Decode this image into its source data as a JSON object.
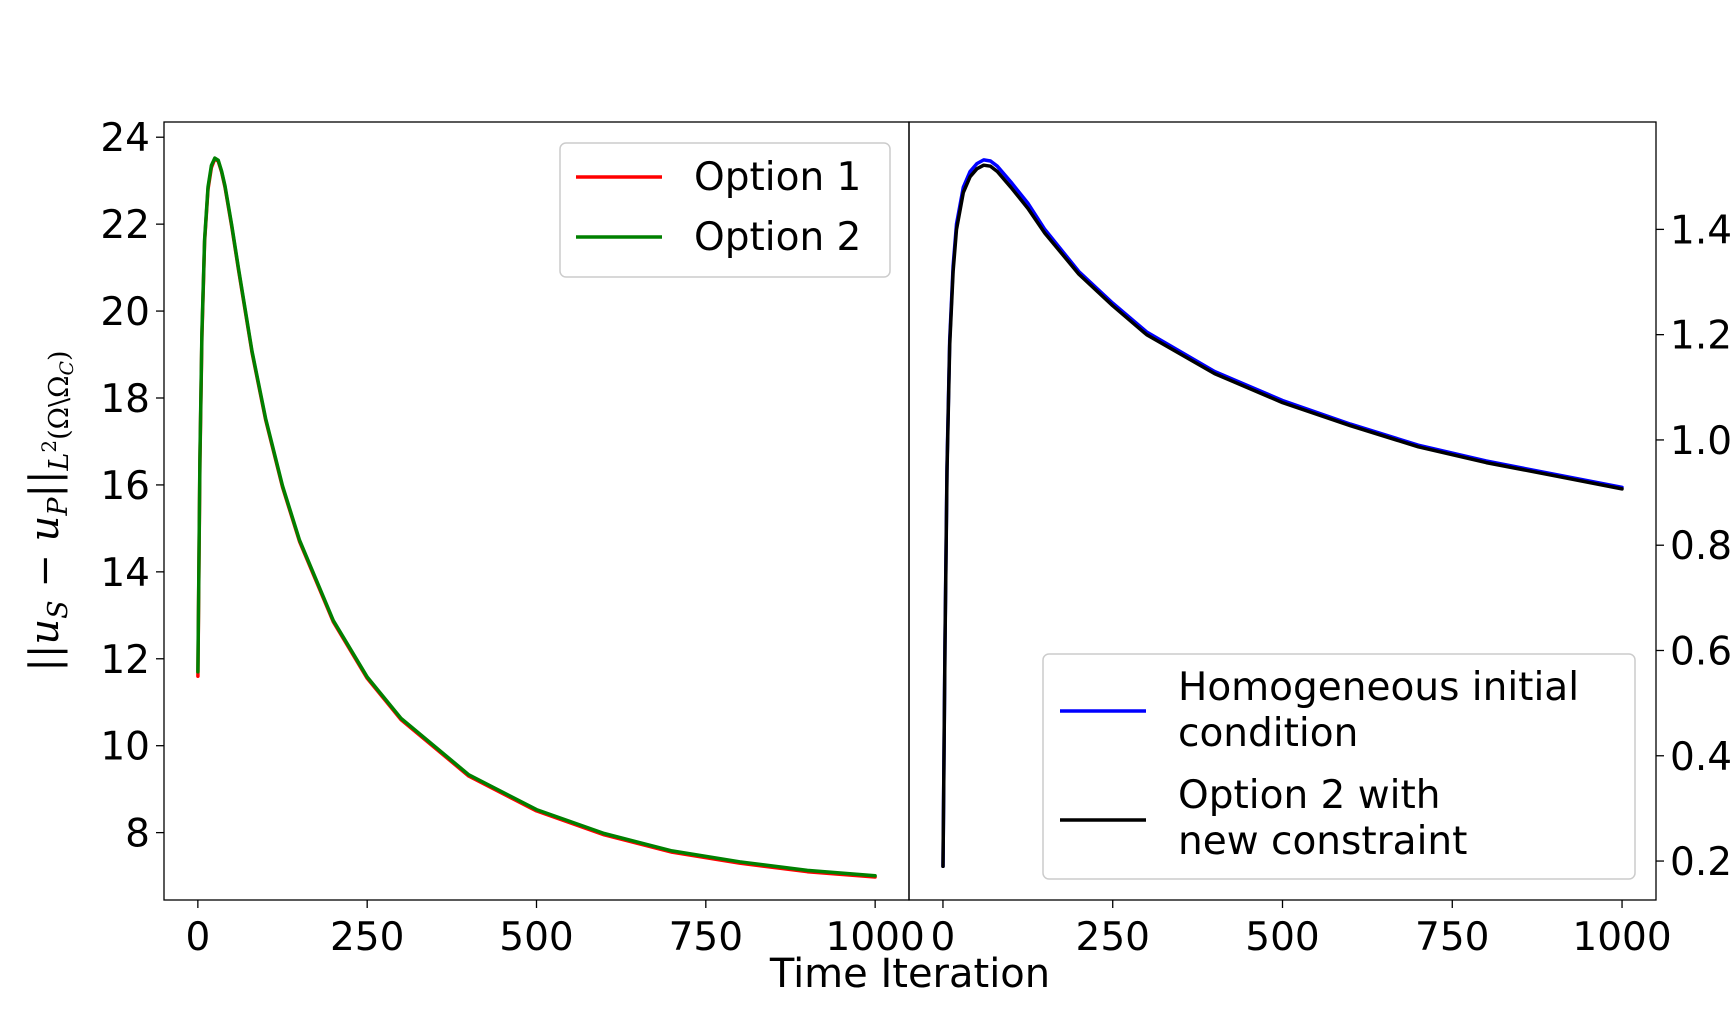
{
  "xlabel": "Time Iteration",
  "ylabel": {
    "norm_open": "||",
    "u": "u",
    "s_sub": "S",
    "minus": " − ",
    "p_sub": "P",
    "norm_close": "||",
    "space": "L",
    "space_exp": "2",
    "domain": "(Ω\\Ω",
    "domain_sub": "C",
    "domain_close": ")"
  },
  "chart_data": [
    {
      "type": "line",
      "title": "",
      "xlim": [
        -50,
        1050
      ],
      "ylim": [
        6.45,
        24.35
      ],
      "x_ticks": [
        0,
        250,
        500,
        750,
        1000
      ],
      "x_tick_labels": [
        "0",
        "250",
        "500",
        "750",
        "1000"
      ],
      "y_ticks": [
        8,
        10,
        12,
        14,
        16,
        18,
        20,
        22,
        24
      ],
      "y_tick_labels": [
        "8",
        "10",
        "12",
        "14",
        "16",
        "18",
        "20",
        "22",
        "24"
      ],
      "y_axis_side": "left",
      "grid": false,
      "legend_loc": "upper right",
      "series": [
        {
          "name": "Option 1",
          "color": "#ff0000",
          "x": [
            0,
            3,
            6,
            10,
            15,
            20,
            25,
            30,
            35,
            40,
            50,
            60,
            80,
            100,
            125,
            150,
            200,
            250,
            300,
            400,
            500,
            600,
            700,
            800,
            900,
            1000
          ],
          "y": [
            11.6,
            16.5,
            19.4,
            21.6,
            22.8,
            23.3,
            23.5,
            23.45,
            23.2,
            22.85,
            21.95,
            20.95,
            19.05,
            17.5,
            15.95,
            14.7,
            12.85,
            11.55,
            10.6,
            9.3,
            8.5,
            7.95,
            7.55,
            7.3,
            7.1,
            6.98
          ]
        },
        {
          "name": "Option 2",
          "color": "#008000",
          "x": [
            0,
            3,
            6,
            10,
            15,
            20,
            25,
            30,
            35,
            40,
            50,
            60,
            80,
            100,
            125,
            150,
            200,
            250,
            300,
            400,
            500,
            600,
            700,
            800,
            900,
            1000
          ],
          "y": [
            11.7,
            16.6,
            19.5,
            21.65,
            22.85,
            23.35,
            23.52,
            23.47,
            23.22,
            22.88,
            21.98,
            20.98,
            19.08,
            17.53,
            15.98,
            14.73,
            12.88,
            11.58,
            10.63,
            9.33,
            8.53,
            7.98,
            7.58,
            7.33,
            7.13,
            7.01
          ]
        }
      ]
    },
    {
      "type": "line",
      "title": "",
      "xlim": [
        -50,
        1050
      ],
      "ylim": [
        0.126,
        1.604
      ],
      "x_ticks": [
        0,
        250,
        500,
        750,
        1000
      ],
      "x_tick_labels": [
        "0",
        "250",
        "500",
        "750",
        "1000"
      ],
      "y_ticks": [
        0.2,
        0.4,
        0.6,
        0.8,
        1.0,
        1.2,
        1.4
      ],
      "y_tick_labels": [
        "0.2",
        "0.4",
        "0.6",
        "0.8",
        "1.0",
        "1.2",
        "1.4"
      ],
      "y_axis_side": "right",
      "grid": false,
      "legend_loc": "lower right",
      "series": [
        {
          "name": "Homogeneous initial\ncondition",
          "color": "#0000ff",
          "x": [
            0,
            3,
            6,
            10,
            15,
            20,
            30,
            40,
            50,
            60,
            70,
            80,
            100,
            125,
            150,
            200,
            250,
            300,
            400,
            500,
            600,
            700,
            800,
            900,
            1000
          ],
          "y": [
            0.19,
            0.62,
            0.95,
            1.19,
            1.33,
            1.41,
            1.48,
            1.51,
            1.525,
            1.532,
            1.53,
            1.52,
            1.49,
            1.45,
            1.4,
            1.32,
            1.26,
            1.205,
            1.13,
            1.075,
            1.03,
            0.99,
            0.96,
            0.935,
            0.91
          ]
        },
        {
          "name": "Option 2 with\nnew constraint",
          "color": "#000000",
          "x": [
            0,
            3,
            6,
            10,
            15,
            20,
            30,
            40,
            50,
            60,
            70,
            80,
            100,
            125,
            150,
            200,
            250,
            300,
            400,
            500,
            600,
            700,
            800,
            900,
            1000
          ],
          "y": [
            0.19,
            0.61,
            0.94,
            1.18,
            1.32,
            1.4,
            1.47,
            1.5,
            1.515,
            1.522,
            1.52,
            1.51,
            1.48,
            1.44,
            1.393,
            1.315,
            1.255,
            1.2,
            1.126,
            1.071,
            1.027,
            0.987,
            0.957,
            0.932,
            0.907
          ]
        }
      ]
    }
  ]
}
